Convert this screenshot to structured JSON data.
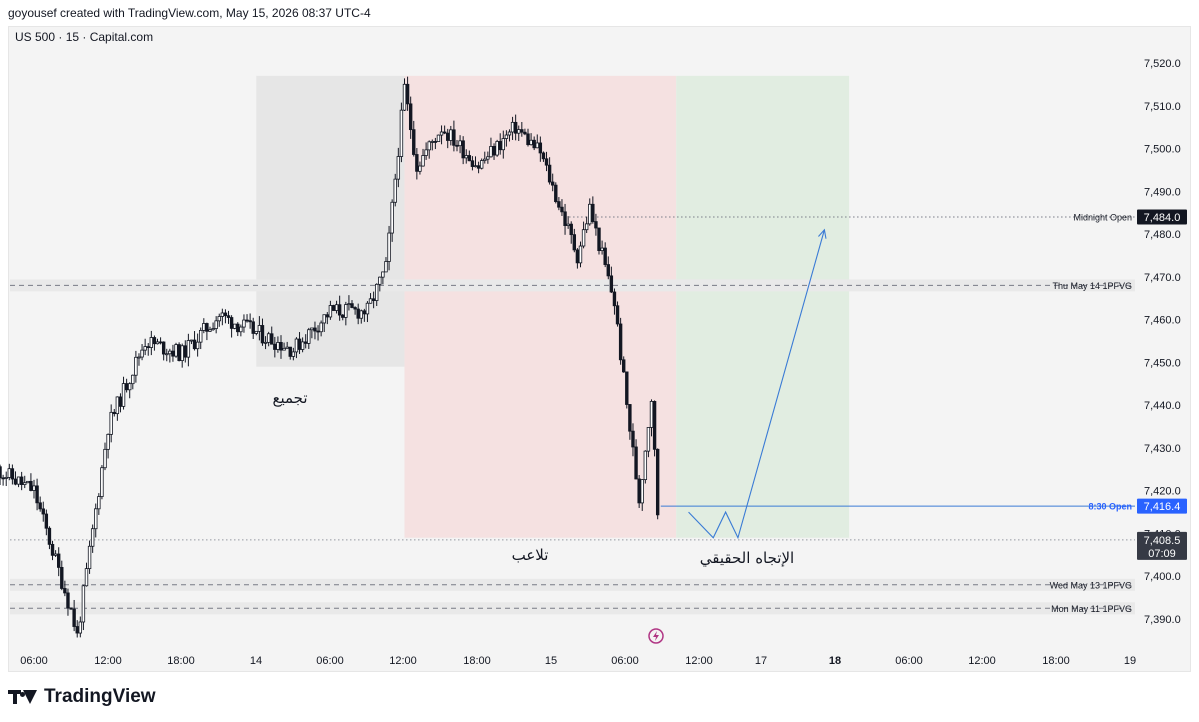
{
  "header": {
    "created_by": "goyousef created with TradingView.com, May 15, 2026 08:37 UTC-4"
  },
  "symbol": "US 500 · 15 · Capital.com",
  "footer": {
    "brand": "TradingView"
  },
  "colors": {
    "candle": "#131722",
    "consolidation_zone": "#e6e6e6",
    "manipulation_zone": "#f5e1e1",
    "distribution_zone": "#e1ede1",
    "projection_line": "#3a7bd5",
    "price_tag": "#131722",
    "open_tag": "#2962ff"
  },
  "chart_data": {
    "type": "candlestick",
    "title": "",
    "ylim": [
      7385,
      7525
    ],
    "y_ticks": [
      "7,390.0",
      "7,400.0",
      "7,410.0",
      "7,420.0",
      "7,430.0",
      "7,440.0",
      "7,450.0",
      "7,460.0",
      "7,470.0",
      "7,480.0",
      "7,490.0",
      "7,500.0",
      "7,510.0",
      "7,520.0"
    ],
    "x_ticks": [
      "06:00",
      "12:00",
      "18:00",
      "14",
      "06:00",
      "12:00",
      "18:00",
      "15",
      "06:00",
      "12:00",
      "17",
      "18",
      "06:00",
      "12:00",
      "18:00",
      "19"
    ],
    "bold_x_ticks": [
      "18"
    ],
    "price_path_key_points": [
      {
        "t": "May 13 03:00",
        "price": 7425
      },
      {
        "t": "May 13 06:00",
        "price": 7420
      },
      {
        "t": "May 13 09:00",
        "price": 7392
      },
      {
        "t": "May 13 09:30",
        "price": 7386
      },
      {
        "t": "May 13 12:00",
        "price": 7435
      },
      {
        "t": "May 13 15:00",
        "price": 7455
      },
      {
        "t": "May 13 18:00",
        "price": 7452
      },
      {
        "t": "May 13 21:00",
        "price": 7461
      },
      {
        "t": "May 14 03:00",
        "price": 7453
      },
      {
        "t": "May 14 06:00",
        "price": 7462
      },
      {
        "t": "May 14 09:00",
        "price": 7462
      },
      {
        "t": "May 14 10:30",
        "price": 7472
      },
      {
        "t": "May 14 12:00",
        "price": 7514
      },
      {
        "t": "May 14 13:00",
        "price": 7496
      },
      {
        "t": "May 14 15:00",
        "price": 7505
      },
      {
        "t": "May 14 18:00",
        "price": 7496
      },
      {
        "t": "May 14 21:00",
        "price": 7505
      },
      {
        "t": "May 14 23:00",
        "price": 7499
      },
      {
        "t": "May 15 02:00",
        "price": 7475
      },
      {
        "t": "May 15 03:00",
        "price": 7486
      },
      {
        "t": "May 15 05:00",
        "price": 7464
      },
      {
        "t": "May 15 06:00",
        "price": 7440
      },
      {
        "t": "May 15 07:00",
        "price": 7418
      },
      {
        "t": "May 15 08:00",
        "price": 7442
      },
      {
        "t": "May 15 08:30",
        "price": 7415
      },
      {
        "t": "May 15 08:37",
        "price": 7408.5
      }
    ],
    "current_price": {
      "label": "7,408.5",
      "countdown": "07:09"
    },
    "levels": [
      {
        "name": "Midnight Open",
        "price": 7484.0,
        "label": "Midnight Open",
        "tag": "7,484.0",
        "style": "dotted"
      },
      {
        "name": "Thu May 14 1PFVG",
        "price": 7468.0,
        "label": "Thu May 14 1PFVG",
        "style": "dashed"
      },
      {
        "name": "8:30 Open",
        "price": 7416.4,
        "label": "8:30 Open",
        "tag": "7,416.4",
        "style": "solid"
      },
      {
        "name": "Wed May 13 1PFVG",
        "price": 7398.0,
        "label": "Wed May 13 1PFVG",
        "style": "dashed"
      },
      {
        "name": "Mon May 11 1PFVG",
        "price": 7392.5,
        "label": "Mon May 11 1PFVG",
        "style": "dashed"
      }
    ],
    "zones": [
      {
        "name": "consolidation",
        "label": "تجميع",
        "from": "May 14 00:00",
        "to": "May 14 12:00",
        "price_high": 7517,
        "price_low": 7449
      },
      {
        "name": "manipulation",
        "label": "تلاعب",
        "from": "May 14 12:00",
        "to": "May 15 10:00",
        "price_high": 7517,
        "price_low": 7409
      },
      {
        "name": "true-trend",
        "label": "الإتجاه الحقيقي",
        "from": "May 15 10:00",
        "to": "May 16 00:00",
        "price_high": 7517,
        "price_low": 7409
      }
    ],
    "projection": [
      {
        "t": "May 15 11:00",
        "price": 7415
      },
      {
        "t": "May 15 13:00",
        "price": 7409
      },
      {
        "t": "May 15 14:00",
        "price": 7415
      },
      {
        "t": "May 15 15:00",
        "price": 7409
      },
      {
        "t": "May 15 22:00",
        "price": 7481
      }
    ]
  }
}
